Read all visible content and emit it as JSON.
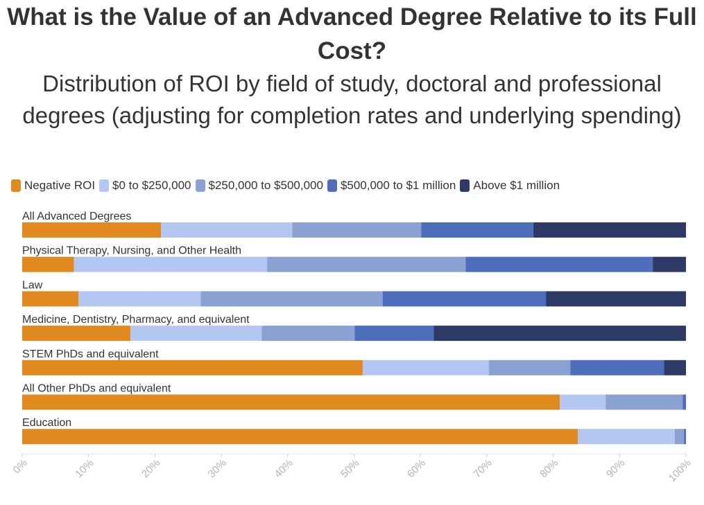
{
  "chart_data": {
    "type": "bar",
    "orientation": "horizontal",
    "stacked": true,
    "title": "What is the Value of an Advanced Degree Relative to its Full Cost?",
    "subtitle": "Distribution of ROI by field of study, doctoral and professional degrees (adjusting for completion rates and underlying spending)",
    "categories": [
      "All Advanced Degrees",
      "Physical Therapy, Nursing, and Other Health",
      "Law",
      "Medicine, Dentistry, Pharmacy, and equivalent",
      "STEM PhDs and equivalent",
      "All Other PhDs and equivalent",
      "Education"
    ],
    "series": [
      {
        "name": "Negative ROI",
        "color": "#e0891f",
        "values": [
          20.9,
          7.8,
          8.5,
          16.3,
          51.3,
          81.0,
          83.7
        ]
      },
      {
        "name": "$0 to $250,000",
        "color": "#b4c7f2",
        "values": [
          19.8,
          29.1,
          18.4,
          19.8,
          19.0,
          6.9,
          14.6
        ]
      },
      {
        "name": "$250,000 to $500,000",
        "color": "#8aa1d1",
        "values": [
          19.4,
          29.9,
          27.4,
          14.0,
          12.3,
          11.6,
          1.4
        ]
      },
      {
        "name": "$500,000 to $1 million",
        "color": "#4e6dbb",
        "values": [
          16.9,
          28.2,
          24.6,
          11.9,
          14.1,
          0.5,
          0.3
        ]
      },
      {
        "name": "Above $1 million",
        "color": "#2e3a66",
        "values": [
          23.0,
          5.0,
          21.1,
          38.0,
          3.3,
          0.0,
          0.0
        ]
      }
    ],
    "xlim": [
      0,
      100
    ],
    "xticks": [
      "0%",
      "10%",
      "20%",
      "30%",
      "40%",
      "50%",
      "60%",
      "70%",
      "80%",
      "90%",
      "100%"
    ],
    "xlabel": "",
    "ylabel": "",
    "legend_position": "top-left",
    "grid": false
  }
}
